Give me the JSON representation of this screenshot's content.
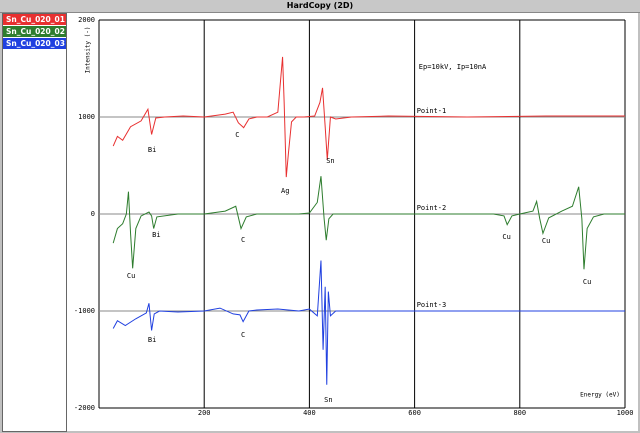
{
  "window": {
    "title": "HardCopy (2D)"
  },
  "chart_data": {
    "type": "line",
    "ylabel": "Intensity (-)",
    "xlabel": "Energy (eV)",
    "xlim": [
      0,
      1000
    ],
    "xticks": [
      200,
      400,
      600,
      800,
      1000
    ],
    "ylim": [
      -2000,
      2000
    ],
    "yticks": [
      -2000,
      -1000,
      0,
      1000,
      2000
    ],
    "grid": true,
    "series": [
      {
        "name": "Sn_Cu_020_01",
        "color": "#e83030",
        "x": [
          27,
          35,
          45,
          60,
          80,
          93,
          100,
          108,
          125,
          160,
          200,
          240,
          255,
          265,
          275,
          285,
          300,
          320,
          340,
          349,
          352,
          356,
          360,
          366,
          375,
          390,
          410,
          420,
          425,
          430,
          434,
          440,
          450,
          480,
          550,
          700,
          850,
          1000
        ],
        "values": [
          700,
          800,
          760,
          900,
          960,
          1080,
          820,
          990,
          1000,
          1010,
          1000,
          1030,
          1050,
          940,
          890,
          980,
          1000,
          1000,
          1050,
          1620,
          1150,
          380,
          620,
          950,
          1000,
          1000,
          1010,
          1150,
          1300,
          900,
          560,
          1000,
          980,
          1000,
          1010,
          1000,
          1010,
          1010
        ]
      },
      {
        "name": "Sn_Cu_020_02",
        "color": "#2e7d2e",
        "x": [
          27,
          35,
          45,
          52,
          56,
          60,
          64,
          70,
          80,
          95,
          100,
          104,
          110,
          150,
          200,
          240,
          260,
          270,
          280,
          300,
          350,
          380,
          400,
          415,
          422,
          428,
          432,
          437,
          445,
          480,
          550,
          650,
          750,
          770,
          776,
          785,
          800,
          825,
          832,
          838,
          844,
          855,
          880,
          900,
          912,
          918,
          922,
          928,
          940,
          960,
          1000
        ],
        "values": [
          -300,
          -150,
          -100,
          0,
          230,
          -200,
          -560,
          -150,
          -20,
          20,
          -20,
          -150,
          -30,
          0,
          0,
          30,
          80,
          -150,
          -30,
          0,
          0,
          0,
          10,
          120,
          390,
          -50,
          -270,
          -50,
          0,
          0,
          0,
          0,
          0,
          -20,
          -110,
          -20,
          0,
          30,
          130,
          -50,
          -200,
          -40,
          30,
          80,
          280,
          -50,
          -570,
          -150,
          -30,
          0,
          0
        ]
      },
      {
        "name": "Sn_Cu_020_03",
        "color": "#2040e0",
        "x": [
          27,
          35,
          50,
          70,
          90,
          95,
          100,
          105,
          115,
          150,
          200,
          230,
          255,
          268,
          274,
          285,
          300,
          340,
          380,
          400,
          415,
          422,
          426,
          430,
          433,
          436,
          440,
          450,
          500,
          600,
          700,
          800,
          900,
          1000
        ],
        "values": [
          -1180,
          -1100,
          -1150,
          -1080,
          -1020,
          -920,
          -1200,
          -1030,
          -1000,
          -1010,
          -1000,
          -970,
          -1030,
          -1040,
          -1110,
          -1000,
          -990,
          -980,
          -1000,
          -980,
          -1050,
          -480,
          -1400,
          -750,
          -1760,
          -800,
          -1050,
          -1000,
          -1000,
          -1000,
          -1000,
          -1000,
          -1000,
          -1000
        ]
      }
    ],
    "annotations": [
      {
        "text": "Ep=10kV, Ip=10nA",
        "x": 608,
        "y": 1515,
        "anchor": "start"
      },
      {
        "text": "Point-1",
        "x": 604,
        "y": 1060,
        "anchor": "start"
      },
      {
        "text": "Point-2",
        "x": 604,
        "y": 60,
        "anchor": "start"
      },
      {
        "text": "Point-3",
        "x": 604,
        "y": -940,
        "anchor": "start"
      },
      {
        "text": "Bi",
        "x": 101,
        "y": 660,
        "anchor": "middle"
      },
      {
        "text": "C",
        "x": 263,
        "y": 815,
        "anchor": "middle"
      },
      {
        "text": "Ag",
        "x": 354,
        "y": 237,
        "anchor": "middle"
      },
      {
        "text": "Sn",
        "x": 440,
        "y": 546,
        "anchor": "middle"
      },
      {
        "text": "Bi",
        "x": 109,
        "y": -216,
        "anchor": "middle"
      },
      {
        "text": "C",
        "x": 274,
        "y": -268,
        "anchor": "middle"
      },
      {
        "text": "Cu",
        "x": 61,
        "y": -640,
        "anchor": "middle"
      },
      {
        "text": "Cu",
        "x": 775,
        "y": -237,
        "anchor": "middle"
      },
      {
        "text": "Cu",
        "x": 850,
        "y": -278,
        "anchor": "middle"
      },
      {
        "text": "Cu",
        "x": 928,
        "y": -700,
        "anchor": "middle"
      },
      {
        "text": "Bi",
        "x": 101,
        "y": -1300,
        "anchor": "middle"
      },
      {
        "text": "C",
        "x": 274,
        "y": -1247,
        "anchor": "middle"
      },
      {
        "text": "Sn",
        "x": 436,
        "y": -1918,
        "anchor": "middle"
      }
    ]
  }
}
